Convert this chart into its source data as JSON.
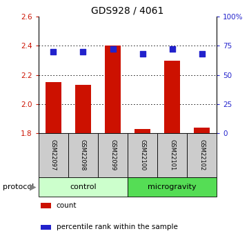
{
  "title": "GDS928 / 4061",
  "samples": [
    "GSM22097",
    "GSM22098",
    "GSM22099",
    "GSM22100",
    "GSM22101",
    "GSM22102"
  ],
  "red_values": [
    2.15,
    2.13,
    2.4,
    1.83,
    2.3,
    1.84
  ],
  "blue_values": [
    70,
    70,
    72,
    68,
    72,
    68
  ],
  "ylim_left": [
    1.8,
    2.6
  ],
  "ylim_right": [
    0,
    100
  ],
  "yticks_left": [
    1.8,
    2.0,
    2.2,
    2.4,
    2.6
  ],
  "yticks_right": [
    0,
    25,
    50,
    75,
    100
  ],
  "ytick_labels_right": [
    "0",
    "25",
    "50",
    "75",
    "100%"
  ],
  "bar_bottom": 1.8,
  "bar_color": "#cc1100",
  "dot_color": "#2222cc",
  "control_color": "#ccffcc",
  "microgravity_color": "#55dd55",
  "sample_box_color": "#cccccc",
  "protocol_groups": [
    {
      "label": "control",
      "start": 0,
      "end": 2,
      "color": "#ccffcc"
    },
    {
      "label": "microgravity",
      "start": 3,
      "end": 5,
      "color": "#55dd55"
    }
  ],
  "protocol_label": "protocol",
  "legend_items": [
    {
      "color": "#cc1100",
      "label": "count"
    },
    {
      "color": "#2222cc",
      "label": "percentile rank within the sample"
    }
  ],
  "grid_color": "#888888",
  "tick_color_left": "#cc1100",
  "tick_color_right": "#2222cc",
  "bar_width": 0.55,
  "dot_size": 40,
  "title_fontsize": 10,
  "tick_fontsize": 7.5,
  "sample_fontsize": 6,
  "proto_fontsize": 8,
  "legend_fontsize": 7.5
}
